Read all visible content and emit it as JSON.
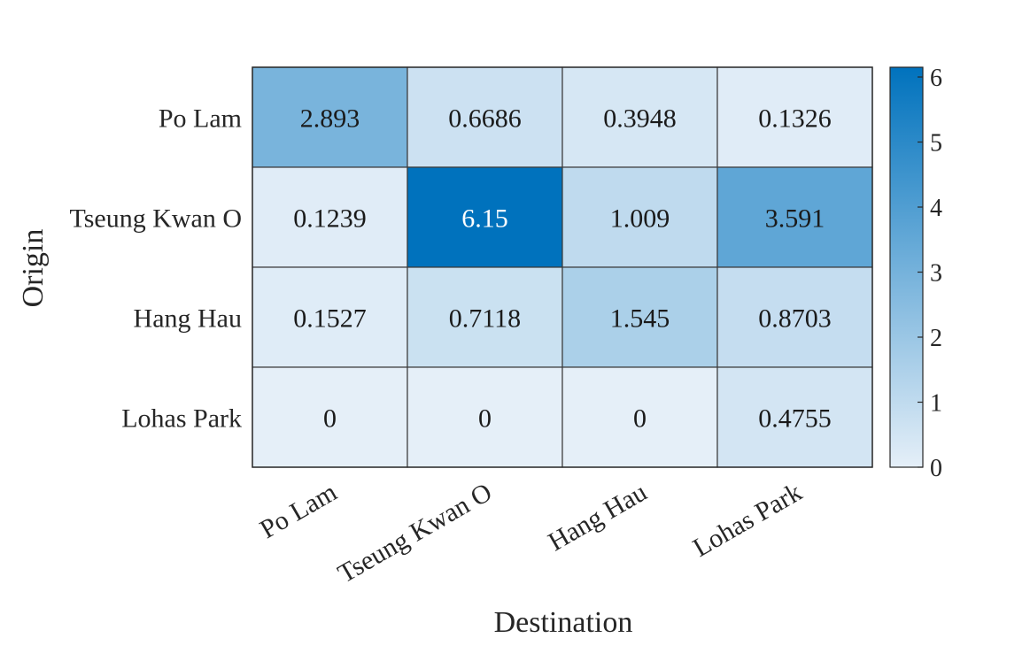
{
  "chart_data": {
    "type": "heatmap",
    "title": "",
    "xlabel": "Destination",
    "ylabel": "Origin",
    "x_categories": [
      "Po Lam",
      "Tseung Kwan O",
      "Hang Hau",
      "Lohas Park"
    ],
    "y_categories": [
      "Po Lam",
      "Tseung Kwan O",
      "Hang Hau",
      "Lohas Park"
    ],
    "values": [
      [
        2.893,
        0.6686,
        0.3948,
        0.1326
      ],
      [
        0.1239,
        6.15,
        1.009,
        3.591
      ],
      [
        0.1527,
        0.7118,
        1.545,
        0.8703
      ],
      [
        0,
        0,
        0,
        0.4755
      ]
    ],
    "value_labels": [
      [
        "2.893",
        "0.6686",
        "0.3948",
        "0.1326"
      ],
      [
        "0.1239",
        "6.15",
        "1.009",
        "3.591"
      ],
      [
        "0.1527",
        "0.7118",
        "1.545",
        "0.8703"
      ],
      [
        "0",
        "0",
        "0",
        "0.4755"
      ]
    ],
    "colorbar": {
      "range": [
        0,
        6.15
      ],
      "ticks": [
        0,
        1,
        2,
        3,
        4,
        5,
        6
      ],
      "tick_labels": [
        "0",
        "1",
        "2",
        "3",
        "4",
        "5",
        "6"
      ],
      "color_low": "#e5eff8",
      "color_high": "#0072bd"
    },
    "grid": false,
    "legend": "none"
  }
}
